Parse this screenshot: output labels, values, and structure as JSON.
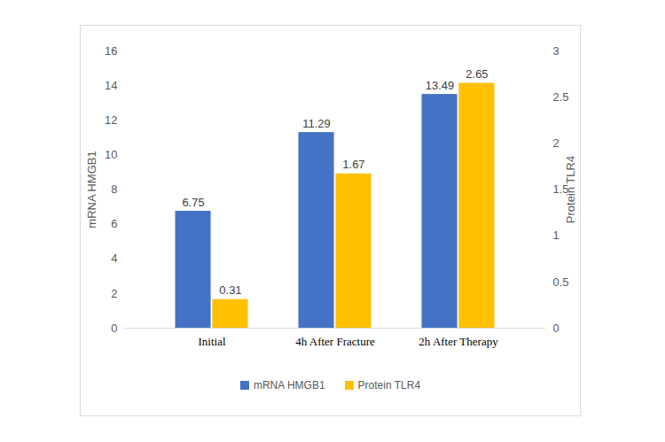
{
  "chart_data": {
    "type": "bar",
    "categories": [
      "Initial",
      "4h After Fracture",
      "2h After Therapy"
    ],
    "series": [
      {
        "name": "mRNA HMGB1",
        "color": "#4472c4",
        "values": [
          6.75,
          11.29,
          13.49
        ]
      },
      {
        "name": "Protein TLR4",
        "color": "#ffc000",
        "values": [
          0.31,
          1.67,
          2.65
        ],
        "axis": "y2"
      }
    ],
    "ylabel": "mRNA HMGB1",
    "y2label": "Protein TLR4",
    "ylim": [
      0,
      16
    ],
    "yticks": [
      0,
      2,
      4,
      6,
      8,
      10,
      12,
      14,
      16
    ],
    "y2lim": [
      0,
      3
    ],
    "y2ticks": [
      0,
      0.5,
      1,
      1.5,
      2,
      2.5,
      3
    ],
    "data_labels": true,
    "grid": false,
    "legend": "bottom"
  }
}
